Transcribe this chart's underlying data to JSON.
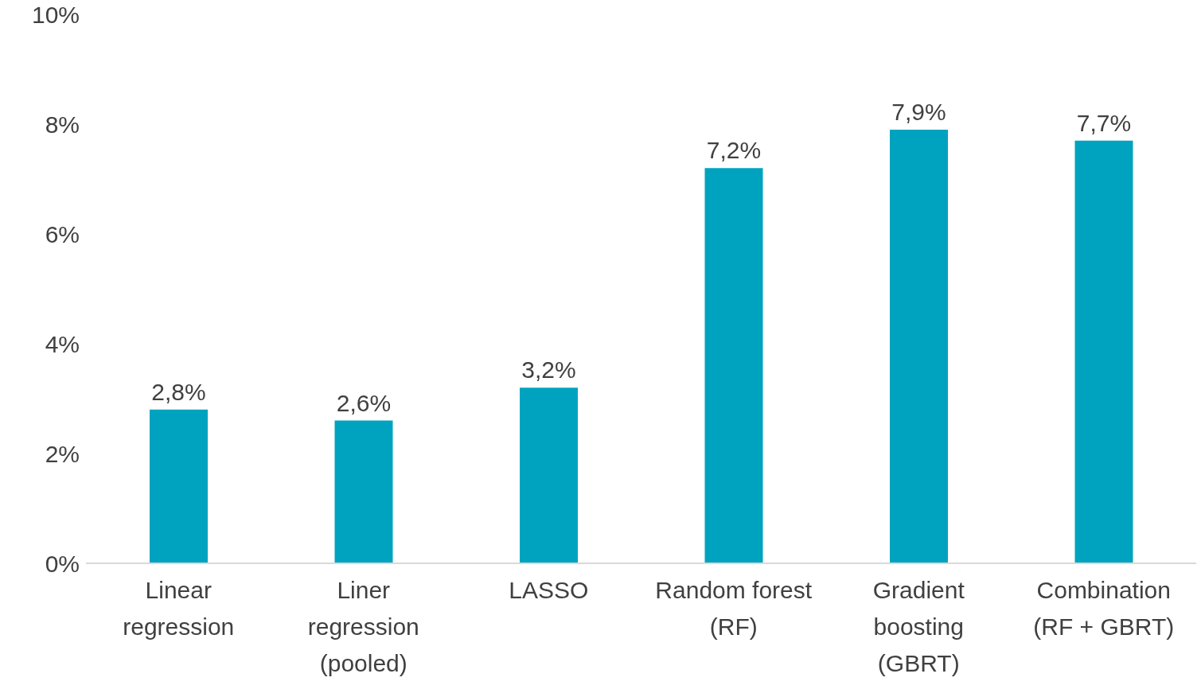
{
  "chart_data": {
    "type": "bar",
    "categories": [
      "Linear regression",
      "Liner regression (pooled)",
      "LASSO",
      "Random forest (RF)",
      "Gradient boosting (GBRT)",
      "Combination (RF + GBRT)"
    ],
    "values": [
      2.8,
      2.6,
      3.2,
      7.2,
      7.9,
      7.7
    ],
    "value_labels": [
      "2,8%",
      "2,6%",
      "3,2%",
      "7,2%",
      "7,9%",
      "7,7%"
    ],
    "color": "#00a3bf",
    "ylim": [
      0,
      10
    ],
    "yticks": [
      {
        "value": 0,
        "label": "0%"
      },
      {
        "value": 2,
        "label": "2%"
      },
      {
        "value": 4,
        "label": "4%"
      },
      {
        "value": 6,
        "label": "6%"
      },
      {
        "value": 8,
        "label": "8%"
      },
      {
        "value": 10,
        "label": "10%"
      }
    ],
    "grid": false,
    "legend": false
  }
}
